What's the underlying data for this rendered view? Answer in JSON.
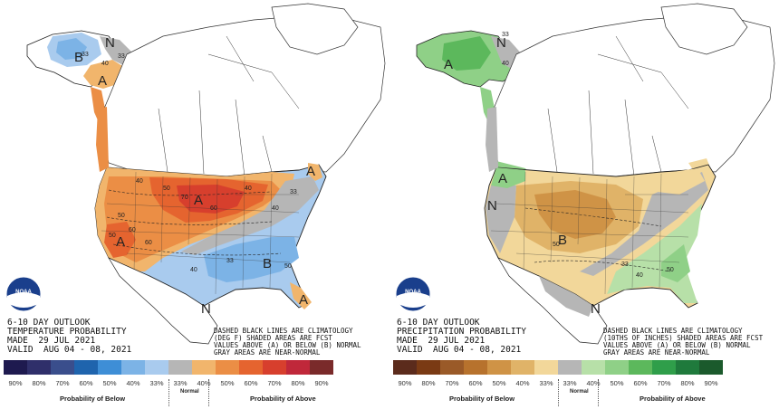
{
  "temperature": {
    "header_line1": "6-10 DAY OUTLOOK",
    "header_line2": "TEMPERATURE PROBABILITY",
    "header_line3": "MADE  29 JUL 2021",
    "header_line4": "VALID  AUG 04 - 08, 2021",
    "note_line1": "DASHED BLACK LINES ARE CLIMATOLOGY",
    "note_line2": "(DEG F) SHADED AREAS ARE FCST",
    "note_line3": "VALUES ABOVE (A) OR BELOW (B) NORMAL",
    "note_line4": "GRAY AREAS ARE NEAR-NORMAL",
    "legend_below_label": "Probability of Below",
    "legend_normal_label": "Normal",
    "legend_above_label": "Probability of Above",
    "legend_ticks": [
      "90%",
      "80%",
      "70%",
      "60%",
      "50%",
      "40%",
      "33%",
      "33%",
      "40%",
      "50%",
      "60%",
      "70%",
      "80%",
      "90%"
    ],
    "legend_colors": [
      "#1e1a4f",
      "#2f2f6a",
      "#3a4e8c",
      "#1f64ad",
      "#3e8ed6",
      "#7cb3e6",
      "#a9cbee",
      "#b6b6b6",
      "#f1b56c",
      "#eb8e45",
      "#e5642f",
      "#d73f2d",
      "#c0283a",
      "#7a2a2a"
    ],
    "map_labels": {
      "A1": "A",
      "A2": "A",
      "A3": "A",
      "A4": "A",
      "A5": "A",
      "B1": "B",
      "B2": "B",
      "N1": "N",
      "N2": "N"
    },
    "contour_labels": [
      "33",
      "40",
      "33",
      "40",
      "50",
      "60",
      "40",
      "50",
      "60",
      "70",
      "50",
      "60",
      "40",
      "33",
      "50",
      "40",
      "33"
    ]
  },
  "precipitation": {
    "header_line1": "6-10 DAY OUTLOOK",
    "header_line2": "PRECIPITATION PROBABILITY",
    "header_line3": "MADE  29 JUL 2021",
    "header_line4": "VALID  AUG 04 - 08, 2021",
    "note_line1": "DASHED BLACK LINES ARE CLIMATOLOGY",
    "note_line2": "(10THS OF INCHES) SHADED AREAS ARE FCST",
    "note_line3": "VALUES ABOVE (A) OR BELOW (B) NORMAL",
    "note_line4": "GRAY AREAS ARE NEAR-NORMAL",
    "legend_below_label": "Probability of Below",
    "legend_normal_label": "Normal",
    "legend_above_label": "Probability of Above",
    "legend_ticks": [
      "90%",
      "80%",
      "70%",
      "60%",
      "50%",
      "40%",
      "33%",
      "33%",
      "40%",
      "50%",
      "60%",
      "70%",
      "80%",
      "90%"
    ],
    "legend_colors": [
      "#5b2b1c",
      "#7a3a14",
      "#9a5a28",
      "#b7722d",
      "#cf9346",
      "#e0b368",
      "#f2d79a",
      "#b6b6b6",
      "#b7e0a8",
      "#8fd087",
      "#5cb85c",
      "#2f9e4a",
      "#1f7a3c",
      "#1b5a2c"
    ],
    "map_labels": {
      "A1": "A",
      "A2": "A",
      "B1": "B",
      "N1": "N",
      "N2": "N",
      "N3": "N"
    },
    "contour_labels": [
      "40",
      "33",
      "50",
      "33",
      "40",
      "50"
    ]
  },
  "logo_text": "NOAA"
}
